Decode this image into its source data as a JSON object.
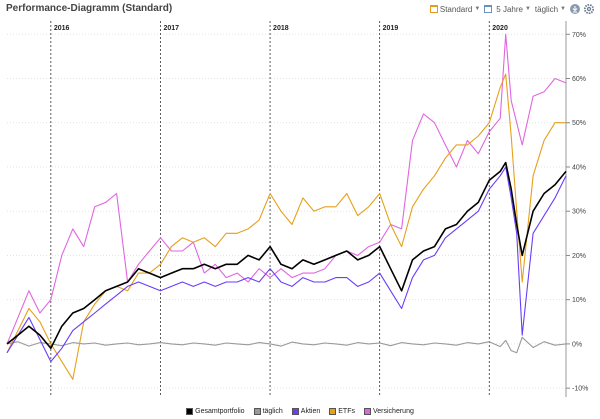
{
  "header": {
    "title": "Performance-Diagramm (Standard)",
    "view_label": "Standard",
    "period_label": "5 Jahre",
    "interval_label": "täglich"
  },
  "colors": {
    "Gesamtportfolio": "#000000",
    "täglich": "#999999",
    "Aktien": "#6a3dfa",
    "ETFs": "#e6a01b",
    "Versicherung": "#e066e0"
  },
  "icons": [
    "calendar-icon",
    "download-icon",
    "settings-icon"
  ],
  "chart_data": {
    "type": "line",
    "ylim": [
      -12,
      73
    ],
    "y_ticks": [
      -10,
      0,
      10,
      20,
      30,
      40,
      50,
      60,
      70
    ],
    "y_tick_labels": [
      "-10%",
      "0%",
      "10%",
      "20%",
      "30%",
      "40%",
      "50%",
      "60%",
      "70%"
    ],
    "x_range": [
      2015.6,
      2020.7
    ],
    "year_lines": [
      {
        "label": "2016",
        "x": 2016.0
      },
      {
        "label": "2017",
        "x": 2017.0
      },
      {
        "label": "2018",
        "x": 2018.0
      },
      {
        "label": "2019",
        "x": 2019.0
      },
      {
        "label": "2020",
        "x": 2020.0
      }
    ],
    "x": [
      2015.6,
      2015.7,
      2015.8,
      2015.9,
      2016.0,
      2016.1,
      2016.2,
      2016.3,
      2016.4,
      2016.5,
      2016.6,
      2016.7,
      2016.8,
      2016.9,
      2017.0,
      2017.1,
      2017.2,
      2017.3,
      2017.4,
      2017.5,
      2017.6,
      2017.7,
      2017.8,
      2017.9,
      2018.0,
      2018.1,
      2018.2,
      2018.3,
      2018.4,
      2018.5,
      2018.6,
      2018.7,
      2018.8,
      2018.9,
      2019.0,
      2019.1,
      2019.2,
      2019.3,
      2019.4,
      2019.5,
      2019.6,
      2019.7,
      2019.8,
      2019.9,
      2020.0,
      2020.1,
      2020.15,
      2020.2,
      2020.25,
      2020.3,
      2020.4,
      2020.5,
      2020.6,
      2020.7
    ],
    "series": [
      {
        "name": "Gesamtportfolio",
        "values": [
          0,
          2,
          4,
          2,
          -1,
          4,
          7,
          8,
          10,
          12,
          13,
          14,
          17,
          16,
          15,
          16,
          17,
          17,
          18,
          17,
          18,
          18,
          20,
          19,
          22,
          18,
          17,
          19,
          18,
          19,
          20,
          21,
          19,
          20,
          22,
          17,
          12,
          19,
          21,
          22,
          26,
          27,
          30,
          32,
          37,
          39,
          41,
          35,
          27,
          20,
          30,
          34,
          36,
          39
        ]
      },
      {
        "name": "täglich",
        "values": [
          0,
          0.5,
          -0.5,
          0.3,
          0,
          -0.4,
          0.3,
          0,
          0.2,
          -0.3,
          0,
          0.2,
          -0.2,
          0,
          0.3,
          0,
          -0.2,
          0.2,
          0,
          -0.3,
          0.2,
          0,
          -0.2,
          0.3,
          0,
          -0.5,
          0.4,
          0,
          -0.2,
          0.2,
          0,
          -0.3,
          0.3,
          0,
          0.2,
          -0.4,
          0.3,
          0,
          -0.2,
          0.2,
          0,
          -0.3,
          0.3,
          0,
          0.5,
          -0.6,
          0.8,
          -1.5,
          -2,
          1.5,
          -0.8,
          0.5,
          -0.3,
          0
        ]
      },
      {
        "name": "Aktien",
        "values": [
          -2,
          2,
          6,
          1,
          -4,
          -1,
          3,
          5,
          7,
          9,
          11,
          13,
          14,
          13,
          12,
          13,
          14,
          13,
          14,
          13,
          14,
          14,
          15,
          14,
          17,
          14,
          13,
          15,
          14,
          14,
          15,
          15,
          13,
          14,
          16,
          12,
          8,
          15,
          19,
          20,
          24,
          26,
          28,
          30,
          35,
          38,
          40,
          33,
          25,
          2,
          25,
          29,
          33,
          38
        ]
      },
      {
        "name": "ETFs",
        "values": [
          -2,
          3,
          8,
          5,
          0,
          -4,
          -8,
          5,
          9,
          12,
          13,
          12,
          16,
          16,
          18,
          22,
          24,
          23,
          24,
          22,
          25,
          25,
          26,
          28,
          34,
          30,
          27,
          33,
          30,
          31,
          31,
          34,
          29,
          31,
          34,
          27,
          22,
          31,
          35,
          38,
          42,
          45,
          45,
          47,
          50,
          58,
          61,
          47,
          30,
          14,
          38,
          46,
          50,
          50
        ]
      },
      {
        "name": "Versicherung",
        "values": [
          0,
          6,
          12,
          7,
          10,
          20,
          26,
          22,
          31,
          32,
          34,
          14,
          18,
          21,
          24,
          21,
          21,
          23,
          16,
          18,
          15,
          16,
          14,
          17,
          15,
          17,
          15,
          16,
          16,
          17,
          20,
          21,
          20,
          22,
          23,
          27,
          26,
          46,
          52,
          50,
          45,
          40,
          46,
          43,
          48,
          51,
          70,
          55,
          50,
          45,
          56,
          57,
          60,
          59
        ]
      }
    ]
  }
}
